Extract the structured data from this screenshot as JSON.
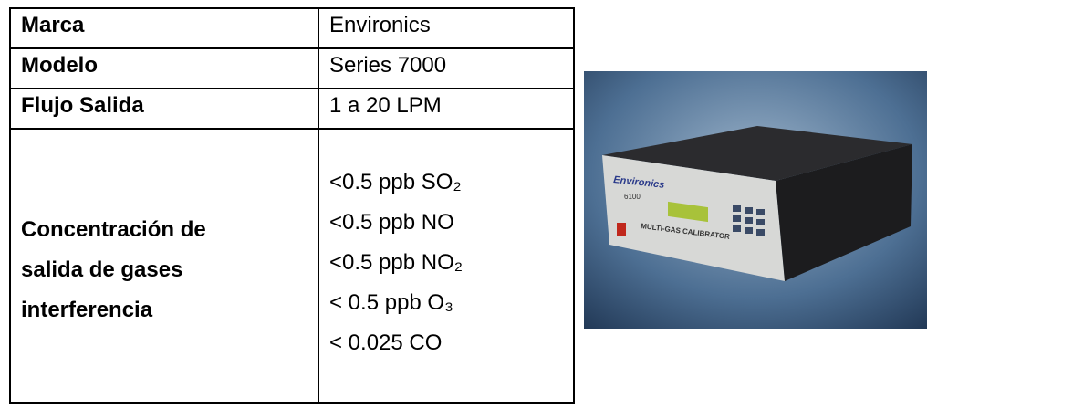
{
  "table": {
    "rows": [
      [
        "Marca",
        "Environics"
      ],
      [
        "Modelo",
        "Series 7000"
      ],
      [
        "Flujo Salida",
        "1 a 20 LPM"
      ]
    ],
    "concentration": {
      "label_lines": [
        "Concentración de",
        "salida de gases",
        "interferencia"
      ],
      "values": [
        "<0.5 ppb SO₂",
        "<0.5 ppb NO",
        "<0.5 ppb NO₂",
        "< 0.5 ppb O₃",
        "< 0.025 CO"
      ]
    }
  },
  "image": {
    "labels": [
      "Environics",
      "6100",
      "MULTI-GAS CALIBRATOR"
    ]
  }
}
